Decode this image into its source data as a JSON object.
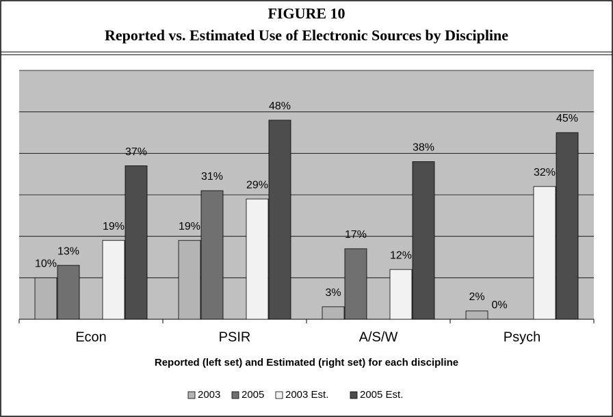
{
  "chart_data": {
    "type": "bar",
    "title": "FIGURE 10",
    "subtitle": "Reported vs. Estimated Use of Electronic Sources by Discipline",
    "x_label": "Reported (left set) and Estimated (right set) for each discipline",
    "categories": [
      "Econ",
      "PSIR",
      "A/S/W",
      "Psych"
    ],
    "series": [
      {
        "name": "2003",
        "color": "#b4b4b4",
        "values": [
          10,
          19,
          3,
          2
        ],
        "value_labels": [
          "10%",
          "19%",
          "3%",
          "2%"
        ]
      },
      {
        "name": "2005",
        "color": "#707070",
        "values": [
          13,
          31,
          17,
          0
        ],
        "value_labels": [
          "13%",
          "31%",
          "17%",
          "0%"
        ]
      },
      {
        "name": "2003 Est.",
        "color": "#f2f2f2",
        "values": [
          19,
          29,
          12,
          32
        ],
        "value_labels": [
          "19%",
          "29%",
          "12%",
          "32%"
        ]
      },
      {
        "name": "2005 Est.",
        "color": "#4d4d4d",
        "values": [
          37,
          48,
          38,
          45
        ],
        "value_labels": [
          "37%",
          "48%",
          "38%",
          "45%"
        ]
      }
    ],
    "ylim": [
      0,
      60
    ],
    "yticks": [
      0,
      10,
      20,
      30,
      40,
      50,
      60
    ],
    "grid": true
  }
}
